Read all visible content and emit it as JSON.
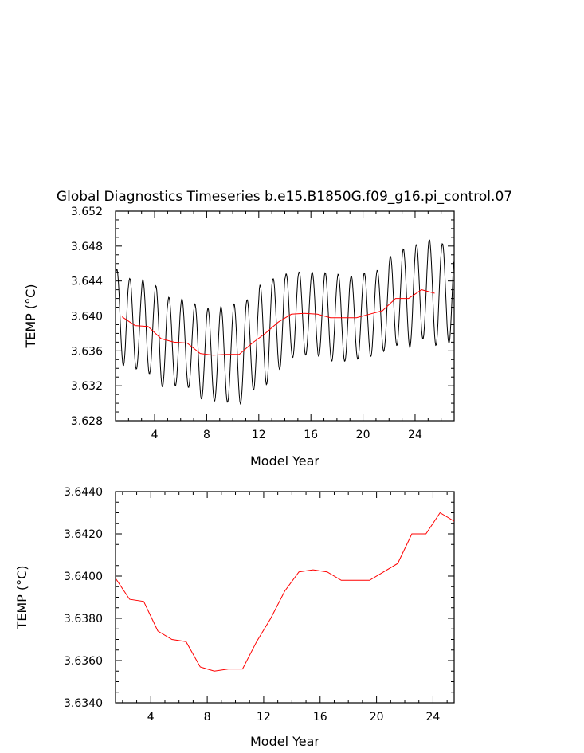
{
  "figure": {
    "title": "Global Diagnostics Timeseries b.e15.B1850G.f09_g16.pi_control.07"
  },
  "chart_data": [
    {
      "type": "line",
      "title": "Global Diagnostics Timeseries b.e15.B1850G.f09_g16.pi_control.07",
      "xlabel": "Model Year",
      "ylabel": "TEMP (°C)",
      "xlim": [
        1,
        27
      ],
      "ylim": [
        3.628,
        3.652
      ],
      "xticks": [
        4,
        8,
        12,
        16,
        20,
        24
      ],
      "xtick_labels": [
        "4",
        "8",
        "12",
        "16",
        "20",
        "24"
      ],
      "yticks": [
        3.628,
        3.632,
        3.636,
        3.64,
        3.644,
        3.648,
        3.652
      ],
      "ytick_labels": [
        "3.628",
        "3.632",
        "3.636",
        "3.640",
        "3.644",
        "3.648",
        "3.652"
      ],
      "grid": false,
      "series": [
        {
          "color": "#000000",
          "description_hidden": true,
          "cycle_years": 1,
          "mean_ref": "annual",
          "amplitude": [
            0.0055,
            0.005,
            0.0053,
            0.0055,
            0.005,
            0.005,
            0.0052,
            0.0053,
            0.0055,
            0.0058,
            0.0055,
            0.006,
            0.0055,
            0.005,
            0.0048,
            0.0048,
            0.005,
            0.005,
            0.0048,
            0.0049,
            0.0048,
            0.0054,
            0.0057,
            0.0056,
            0.006,
            0.0057
          ]
        },
        {
          "color": "#ff0000",
          "x": [
            1.5,
            2.5,
            3.5,
            4.5,
            5.5,
            6.5,
            7.5,
            8.5,
            9.5,
            10.5,
            11.5,
            12.5,
            13.5,
            14.5,
            15.5,
            16.5,
            17.5,
            18.5,
            19.5,
            20.5,
            21.5,
            22.5,
            23.5,
            24.5,
            25.5
          ],
          "values": [
            3.6399,
            3.6389,
            3.6388,
            3.6374,
            3.637,
            3.6369,
            3.6357,
            3.6355,
            3.6356,
            3.6356,
            3.6369,
            3.638,
            3.6393,
            3.6402,
            3.6403,
            3.6402,
            3.6398,
            3.6398,
            3.6398,
            3.6402,
            3.6406,
            3.642,
            3.642,
            3.643,
            3.6426
          ]
        }
      ]
    },
    {
      "type": "line",
      "title": "",
      "xlabel": "Model Year",
      "ylabel": "TEMP (°C)",
      "xlim": [
        1.5,
        25.5
      ],
      "ylim": [
        3.634,
        3.644
      ],
      "xticks": [
        4,
        8,
        12,
        16,
        20,
        24
      ],
      "xtick_labels": [
        "4",
        "8",
        "12",
        "16",
        "20",
        "24"
      ],
      "yticks": [
        3.634,
        3.636,
        3.638,
        3.64,
        3.642,
        3.644
      ],
      "ytick_labels": [
        "3.6340",
        "3.6360",
        "3.6380",
        "3.6400",
        "3.6420",
        "3.6440"
      ],
      "grid": false,
      "series": [
        {
          "color": "#ff0000",
          "x": [
            1.5,
            2.5,
            3.5,
            4.5,
            5.5,
            6.5,
            7.5,
            8.5,
            9.5,
            10.5,
            11.5,
            12.5,
            13.5,
            14.5,
            15.5,
            16.5,
            17.5,
            18.5,
            19.5,
            20.5,
            21.5,
            22.5,
            23.5,
            24.5,
            25.5
          ],
          "values": [
            3.6399,
            3.6389,
            3.6388,
            3.6374,
            3.637,
            3.6369,
            3.6357,
            3.6355,
            3.6356,
            3.6356,
            3.6369,
            3.638,
            3.6393,
            3.6402,
            3.6403,
            3.6402,
            3.6398,
            3.6398,
            3.6398,
            3.6402,
            3.6406,
            3.642,
            3.642,
            3.643,
            3.6426
          ]
        }
      ]
    }
  ]
}
